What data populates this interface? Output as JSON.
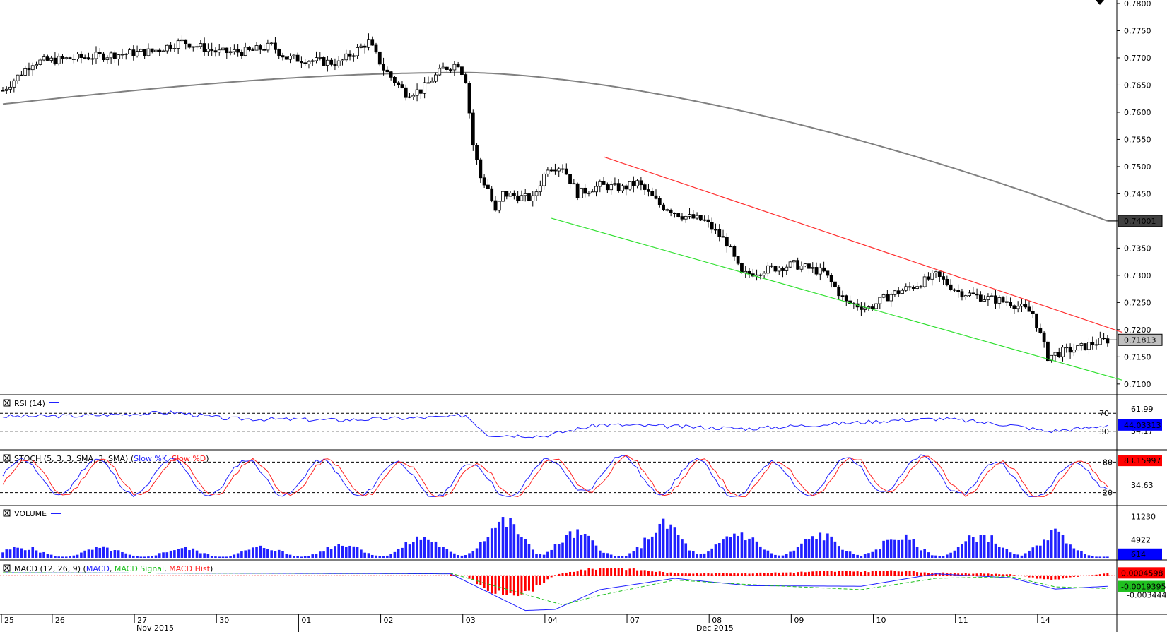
{
  "chart_data": [
    {
      "type": "candlestick",
      "panel": "price",
      "y_ticks": [
        "0.7800",
        "0.7750",
        "0.7700",
        "0.7650",
        "0.7600",
        "0.7550",
        "0.7500",
        "0.7450",
        "0.7400",
        "0.7350",
        "0.7300",
        "0.7250",
        "0.7200",
        "0.7150",
        "0.7100"
      ],
      "ylim": [
        0.7092,
        0.78
      ],
      "close_path": [
        [
          0,
          0.764
        ],
        [
          8,
          0.7692
        ],
        [
          20,
          0.77
        ],
        [
          40,
          0.7712
        ],
        [
          48,
          0.773
        ],
        [
          58,
          0.771
        ],
        [
          66,
          0.7712
        ],
        [
          72,
          0.7722
        ],
        [
          76,
          0.77
        ],
        [
          90,
          0.769
        ],
        [
          98,
          0.773
        ],
        [
          102,
          0.768
        ],
        [
          108,
          0.7635
        ],
        [
          112,
          0.764
        ],
        [
          118,
          0.768
        ],
        [
          122,
          0.769
        ],
        [
          124,
          0.766
        ],
        [
          126,
          0.754
        ],
        [
          128,
          0.748
        ],
        [
          130,
          0.746
        ],
        [
          132,
          0.7415
        ],
        [
          134,
          0.745
        ],
        [
          138,
          0.7445
        ],
        [
          142,
          0.744
        ],
        [
          146,
          0.75
        ],
        [
          150,
          0.75
        ],
        [
          154,
          0.745
        ],
        [
          160,
          0.7465
        ],
        [
          166,
          0.746
        ],
        [
          170,
          0.747
        ],
        [
          176,
          0.743
        ],
        [
          182,
          0.741
        ],
        [
          188,
          0.74
        ],
        [
          194,
          0.736
        ],
        [
          198,
          0.73
        ],
        [
          204,
          0.731
        ],
        [
          212,
          0.732
        ],
        [
          220,
          0.7305
        ],
        [
          226,
          0.725
        ],
        [
          232,
          0.724
        ],
        [
          238,
          0.7265
        ],
        [
          244,
          0.728
        ],
        [
          250,
          0.73
        ],
        [
          256,
          0.727
        ],
        [
          262,
          0.726
        ],
        [
          270,
          0.725
        ],
        [
          276,
          0.723
        ],
        [
          280,
          0.715
        ],
        [
          284,
          0.716
        ],
        [
          288,
          0.7165
        ],
        [
          292,
          0.7175
        ],
        [
          296,
          0.7181
        ]
      ],
      "series": [
        {
          "name": "",
          "x": [
            0,
            296
          ],
          "values": [
            0.7615,
            0.74
          ]
        }
      ],
      "channel_lines": [
        {
          "color": "#ff3030",
          "x": [
            161,
            300
          ],
          "values": [
            0.7518,
            0.7195
          ]
        },
        {
          "color": "#30e030",
          "x": [
            147,
            300
          ],
          "values": [
            0.7405,
            0.7107
          ]
        }
      ],
      "last_value_labels": [
        "0.74001",
        "0.71813"
      ]
    },
    {
      "type": "line",
      "panel": "rsi",
      "legend": "RSI (14)",
      "levels": [
        "70",
        "30"
      ],
      "axis_labels": [
        "61.99",
        "34.17"
      ],
      "current_value": "44.03313",
      "series": [
        {
          "name": "RSI (14)",
          "x": [
            0,
            20,
            46,
            60,
            90,
            120,
            124,
            130,
            145,
            160,
            200,
            240,
            252,
            270,
            280,
            290,
            296
          ],
          "values": [
            63,
            64,
            72,
            58,
            55,
            62,
            66,
            22,
            20,
            45,
            36,
            55,
            58,
            44,
            30,
            37,
            44
          ]
        }
      ]
    },
    {
      "type": "line",
      "panel": "stochastic",
      "legend": "STOCH (5, 3, 3, SMA, 3, SMA)",
      "legend_series": [
        "Slow %K",
        "Slow %D"
      ],
      "levels": [
        "80",
        "20"
      ],
      "axis_labels": [
        "34.63"
      ],
      "current_value": "83.15997",
      "series": [
        {
          "name": "Slow %K",
          "color": "#2020ff",
          "x": [
            0,
            40,
            90,
            130,
            160,
            200,
            240,
            270,
            285,
            296
          ],
          "values": [
            55,
            50,
            45,
            20,
            85,
            25,
            80,
            30,
            25,
            88
          ]
        },
        {
          "name": "Slow %D",
          "color": "#ff2020",
          "x": [
            0,
            40,
            90,
            130,
            160,
            200,
            240,
            270,
            285,
            296
          ],
          "values": [
            52,
            48,
            48,
            22,
            80,
            28,
            78,
            32,
            27,
            83
          ]
        }
      ]
    },
    {
      "type": "bar",
      "panel": "volume",
      "legend": "VOLUME",
      "axis_labels": [
        "11230",
        "4922"
      ],
      "current_value": "614",
      "ylim": [
        0,
        13000
      ],
      "series": [
        {
          "name": "VOLUME",
          "x": [
            0,
            40,
            80,
            120,
            140,
            164,
            180,
            200,
            230,
            250,
            262,
            280,
            290,
            296
          ],
          "values": [
            2800,
            2400,
            3000,
            5800,
            11300,
            3000,
            10000,
            6000,
            6000,
            5000,
            6000,
            7500,
            3000,
            614
          ]
        }
      ]
    },
    {
      "type": "line",
      "panel": "macd",
      "legend": "MACD (12, 26, 9)",
      "legend_series": [
        "MACD",
        "MACD Signal",
        "MACD Hist"
      ],
      "axis_labels": [
        "-0.0034441"
      ],
      "current_value": [
        "0.0004598",
        "-0.0019395"
      ],
      "series": [
        {
          "name": "MACD",
          "color": "#2020ff",
          "x": [
            0,
            60,
            120,
            124,
            140,
            148,
            160,
            180,
            200,
            230,
            250,
            270,
            282,
            296
          ],
          "values": [
            0.0005,
            0.0004,
            0.0003,
            -0.001,
            -0.0062,
            -0.006,
            -0.0025,
            -0.0005,
            -0.0018,
            -0.0019,
            0.0003,
            -0.0004,
            -0.0024,
            -0.0019
          ]
        },
        {
          "name": "MACD Signal",
          "color": "#20c020",
          "x": [
            0,
            60,
            120,
            130,
            150,
            160,
            180,
            200,
            230,
            250,
            270,
            282,
            296
          ],
          "values": [
            0.0005,
            0.0004,
            0.0004,
            -0.0015,
            -0.0052,
            -0.0035,
            -0.0008,
            -0.0016,
            -0.0025,
            -0.0005,
            -0.0002,
            -0.002,
            -0.0023
          ]
        },
        {
          "name": "MACD Hist",
          "color": "#ff0000",
          "x": [
            120,
            124,
            130,
            140,
            148,
            156,
            164,
            180,
            200,
            220,
            240,
            250,
            270,
            280,
            296
          ],
          "values": [
            0.0002,
            -0.0001,
            -0.0028,
            -0.0032,
            0.0001,
            0.0011,
            0.0014,
            0.0004,
            0.0004,
            0.0007,
            0.0008,
            0.0005,
            0.0002,
            -0.0008,
            0.0004
          ]
        }
      ]
    }
  ],
  "time_axis": {
    "days": [
      "25",
      "26",
      "27",
      "30",
      "01",
      "02",
      "03",
      "04",
      "07",
      "08",
      "09",
      "10",
      "11",
      "14"
    ],
    "months": [
      "Nov 2015",
      "Dec 2015"
    ]
  },
  "colors": {
    "bull_body": "#ffffff",
    "bear_body": "#000000",
    "ma_line": "#808080",
    "value_label_dark": "#404040",
    "value_label_blue": "#0000ff",
    "value_label_red": "#ff0000"
  }
}
